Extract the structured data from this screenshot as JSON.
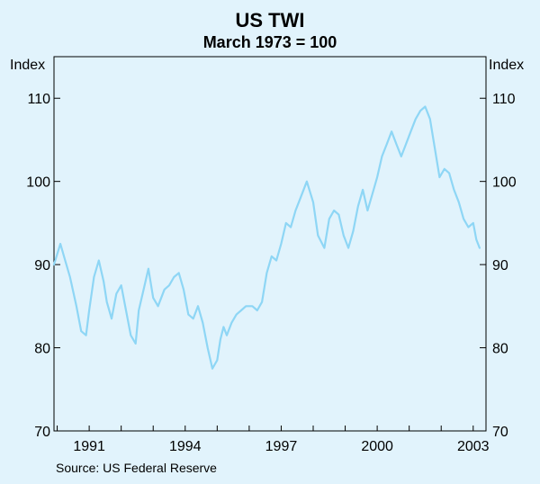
{
  "chart_data": {
    "type": "line",
    "title": "US TWI",
    "subtitle": "March 1973 = 100",
    "ylabel_left": "Index",
    "ylabel_right": "Index",
    "source": "Source: US Federal Reserve",
    "ylim": [
      70,
      115
    ],
    "xlim": [
      1989.9,
      2003.4
    ],
    "yticks": [
      70,
      80,
      90,
      100,
      110
    ],
    "xticks": [
      1991,
      1994,
      1997,
      2000,
      2003
    ],
    "grid": false,
    "series": [
      {
        "name": "US TWI",
        "color": "#8ed6f5",
        "x": [
          1989.9,
          1990.1,
          1990.25,
          1990.4,
          1990.6,
          1990.75,
          1990.9,
          1991.0,
          1991.15,
          1991.3,
          1991.45,
          1991.55,
          1991.7,
          1991.85,
          1992.0,
          1992.15,
          1992.3,
          1992.45,
          1992.55,
          1992.7,
          1992.85,
          1993.0,
          1993.15,
          1993.35,
          1993.5,
          1993.65,
          1993.8,
          1993.95,
          1994.1,
          1994.25,
          1994.4,
          1994.55,
          1994.7,
          1994.85,
          1995.0,
          1995.1,
          1995.2,
          1995.3,
          1995.45,
          1995.6,
          1995.75,
          1995.9,
          1996.1,
          1996.25,
          1996.4,
          1996.55,
          1996.7,
          1996.85,
          1997.0,
          1997.15,
          1997.3,
          1997.45,
          1997.6,
          1997.8,
          1998.0,
          1998.15,
          1998.35,
          1998.5,
          1998.65,
          1998.8,
          1998.95,
          1999.1,
          1999.25,
          1999.4,
          1999.55,
          1999.7,
          1999.85,
          2000.0,
          2000.15,
          2000.3,
          2000.45,
          2000.6,
          2000.75,
          2000.9,
          2001.05,
          2001.2,
          2001.35,
          2001.5,
          2001.65,
          2001.8,
          2001.95,
          2002.1,
          2002.25,
          2002.4,
          2002.55,
          2002.7,
          2002.85,
          2003.0,
          2003.1,
          2003.2
        ],
        "values": [
          90.0,
          92.5,
          90.5,
          88.5,
          85.0,
          82.0,
          81.5,
          84.5,
          88.5,
          90.5,
          88.0,
          85.5,
          83.5,
          86.5,
          87.5,
          84.5,
          81.5,
          80.5,
          84.5,
          87.0,
          89.5,
          86.0,
          85.0,
          87.0,
          87.5,
          88.5,
          89.0,
          87.0,
          84.0,
          83.5,
          85.0,
          83.0,
          80.0,
          77.5,
          78.5,
          81.0,
          82.5,
          81.5,
          83.0,
          84.0,
          84.5,
          85.0,
          85.0,
          84.5,
          85.5,
          89.0,
          91.0,
          90.5,
          92.5,
          95.0,
          94.5,
          96.5,
          98.0,
          100.0,
          97.5,
          93.5,
          92.0,
          95.5,
          96.5,
          96.0,
          93.5,
          92.0,
          94.0,
          97.0,
          99.0,
          96.5,
          98.5,
          100.5,
          103.0,
          104.5,
          106.0,
          104.5,
          103.0,
          104.5,
          106.0,
          107.5,
          108.5,
          109.0,
          107.5,
          104.0,
          100.5,
          101.5,
          101.0,
          99.0,
          97.5,
          95.5,
          94.5,
          95.0,
          93.0,
          92.0
        ]
      }
    ]
  }
}
